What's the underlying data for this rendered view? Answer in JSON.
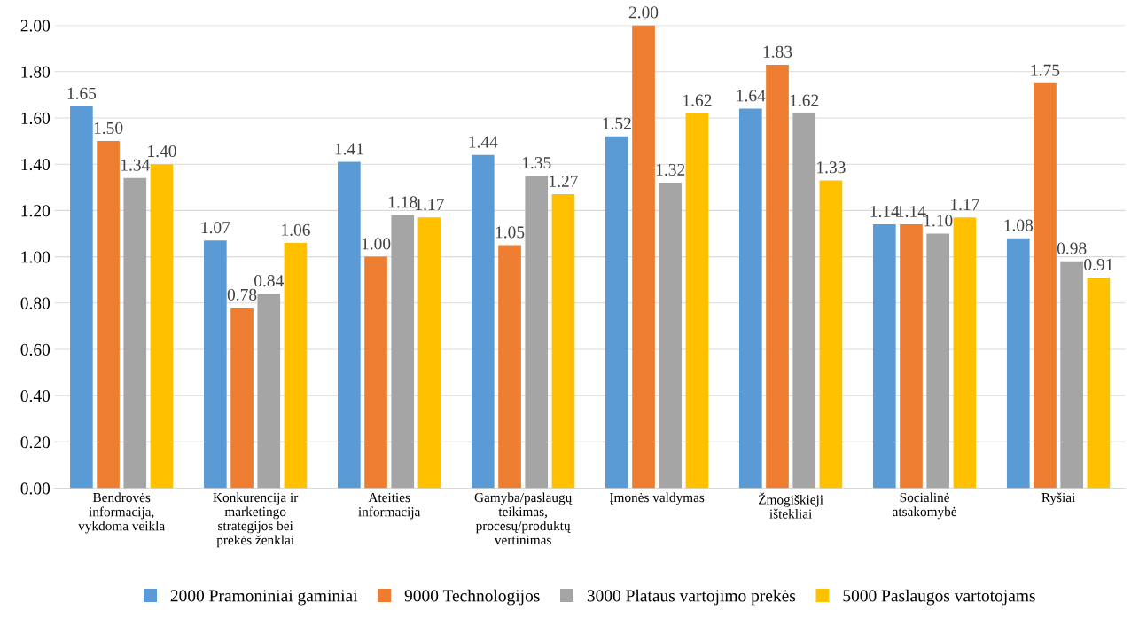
{
  "chart_data": {
    "type": "bar",
    "categories": [
      "Bendrovės\ninformacija,\nvykdoma veikla",
      "Konkurencija ir\nmarketingo\nstrategijos bei\nprekės ženklai",
      "Ateities\ninformacija",
      "Gamyba/paslaugų\nteikimas,\nprocesų/produktų\nvertinimas",
      "Įmonės valdymas",
      "Žmogiškieji\ništekliai",
      "Socialinė\natsakomybė",
      "Ryšiai"
    ],
    "series": [
      {
        "name": "2000 Pramoniniai gaminiai",
        "color": "#5b9bd5",
        "values": [
          1.65,
          1.07,
          1.41,
          1.44,
          1.52,
          1.64,
          1.14,
          1.08
        ],
        "value_labels": [
          "1.65",
          "1.07",
          "1.41",
          "1.44",
          "1.52",
          "1.64",
          "1.14",
          "1.08"
        ]
      },
      {
        "name": "9000 Technologijos",
        "color": "#ed7d31",
        "values": [
          1.5,
          0.78,
          1.0,
          1.05,
          2.0,
          1.83,
          1.14,
          1.75
        ],
        "value_labels": [
          "1.50",
          "0.78",
          "1.00",
          "1.05",
          "2.00",
          "1.83",
          "1.14",
          "1.75"
        ]
      },
      {
        "name": "3000 Plataus vartojimo prekės",
        "color": "#a5a5a5",
        "values": [
          1.34,
          0.84,
          1.18,
          1.35,
          1.32,
          1.62,
          1.1,
          0.98
        ],
        "value_labels": [
          "1.34",
          "0.84",
          "1.18",
          "1.35",
          "1.32",
          "1.62",
          "1.10",
          "0.98"
        ]
      },
      {
        "name": "5000 Paslaugos vartotojams",
        "color": "#ffc000",
        "values": [
          1.4,
          1.06,
          1.17,
          1.27,
          1.62,
          1.33,
          1.17,
          0.91
        ],
        "value_labels": [
          "1.40",
          "1.06",
          "1.17",
          "1.27",
          "1.62",
          "1.33",
          "1.17",
          "0.91"
        ]
      }
    ],
    "ylim": [
      0,
      2
    ],
    "yticks": [
      {
        "value": 0,
        "label": "0.00"
      },
      {
        "value": 0.2,
        "label": "0.20"
      },
      {
        "value": 0.4,
        "label": "0.40"
      },
      {
        "value": 0.6,
        "label": "0.60"
      },
      {
        "value": 0.8,
        "label": "0.80"
      },
      {
        "value": 1.0,
        "label": "1.00"
      },
      {
        "value": 1.2,
        "label": "1.20"
      },
      {
        "value": 1.4,
        "label": "1.40"
      },
      {
        "value": 1.6,
        "label": "1.60"
      },
      {
        "value": 1.8,
        "label": "1.80"
      },
      {
        "value": 2.0,
        "label": "2.00"
      }
    ],
    "grid": "y",
    "legend": "bottom"
  }
}
